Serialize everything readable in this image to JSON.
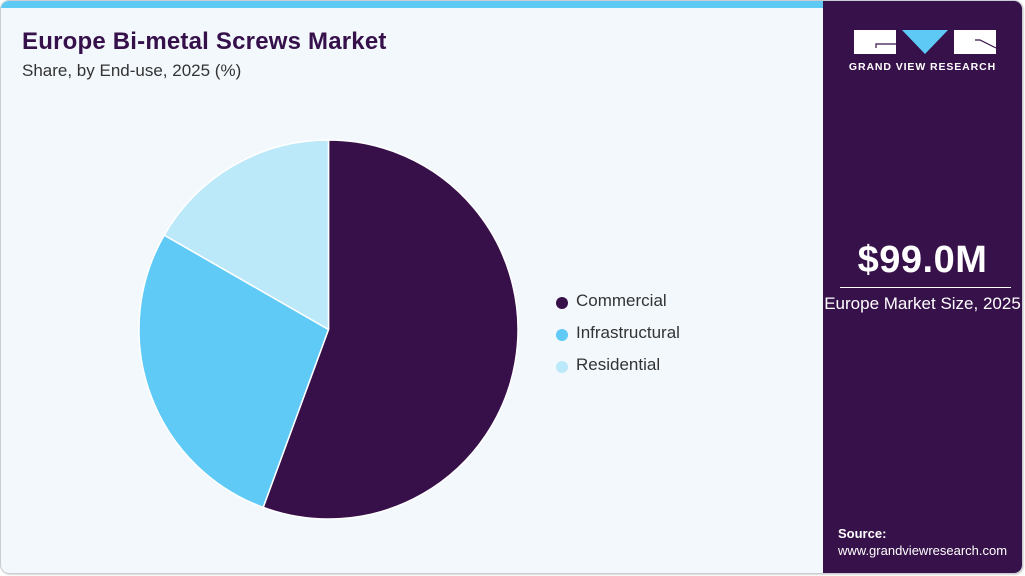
{
  "header": {
    "title": "Europe Bi-metal Screws Market",
    "subtitle": "Share, by End-use, 2025 (%)"
  },
  "legend": {
    "items": [
      {
        "label": "Commercial",
        "color": "#37104a"
      },
      {
        "label": "Infrastructural",
        "color": "#5ecaf5"
      },
      {
        "label": "Residential",
        "color": "#bce9f9"
      }
    ]
  },
  "sidebar": {
    "brand": "GRAND VIEW RESEARCH",
    "market_value": "$99.0M",
    "market_label": "Europe Market Size, 2025",
    "source_label": "Source:",
    "source_url": "www.grandviewresearch.com"
  },
  "colors": {
    "accent_bar": "#5ec9f5",
    "panel_bg": "#37114a",
    "card_bg": "#f3f8fc",
    "title": "#35104a"
  },
  "chart_data": {
    "type": "pie",
    "title": "Europe Bi-metal Screws Market",
    "subtitle": "Share, by End-use, 2025 (%)",
    "categories": [
      "Commercial",
      "Infrastructural",
      "Residential"
    ],
    "values": [
      55.6,
      27.7,
      16.7
    ],
    "colors": [
      "#37104a",
      "#5ecaf5",
      "#bce9f9"
    ],
    "start_angle": "12 o'clock, clockwise",
    "legend_position": "right",
    "data_labels": false
  }
}
